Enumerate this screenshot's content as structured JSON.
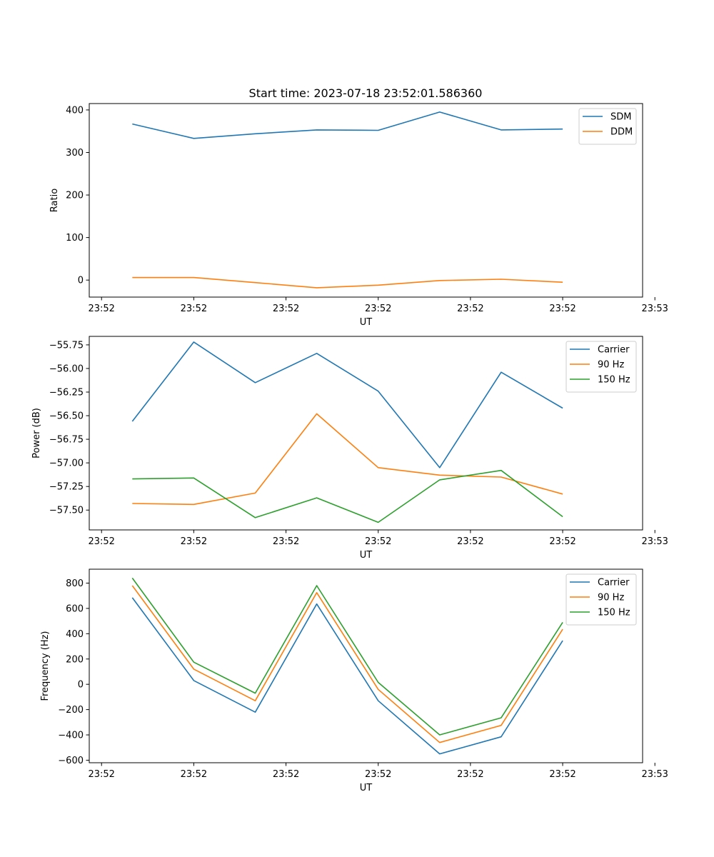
{
  "figure_title": "Start time: 2023-07-18 23:52:01.586360",
  "colors": {
    "c0": "#1f77b4",
    "c1": "#ff7f0e",
    "c2": "#2ca02c"
  },
  "chart_data": [
    {
      "type": "line",
      "title": "Start time: 2023-07-18 23:52:01.586360",
      "xlabel": "UT",
      "ylabel": "Ratio",
      "x": [
        1,
        2,
        3,
        4,
        5,
        6,
        7,
        8
      ],
      "xlim": [
        0.3,
        9.3
      ],
      "xticks": [
        0.5,
        2,
        3.5,
        5,
        6.5,
        8,
        9.5
      ],
      "xtick_labels": [
        "23:52",
        "23:52",
        "23:52",
        "23:52",
        "23:52",
        "23:52",
        "23:53"
      ],
      "ylim": [
        -40,
        415
      ],
      "yticks": [
        0,
        100,
        200,
        300,
        400
      ],
      "ytick_labels": [
        "0",
        "100",
        "200",
        "300",
        "400"
      ],
      "legend_position": "top-right",
      "series": [
        {
          "name": "SDM",
          "color": "#1f77b4",
          "values": [
            367,
            333,
            344,
            353,
            352,
            395,
            353,
            355
          ]
        },
        {
          "name": "DDM",
          "color": "#ff7f0e",
          "values": [
            6,
            6,
            -6,
            -18,
            -12,
            -1,
            2,
            -5
          ]
        }
      ]
    },
    {
      "type": "line",
      "title": "",
      "xlabel": "UT",
      "ylabel": "Power (dB)",
      "x": [
        1,
        2,
        3,
        4,
        5,
        6,
        7,
        8
      ],
      "xlim": [
        0.3,
        9.3
      ],
      "xticks": [
        0.5,
        2,
        3.5,
        5,
        6.5,
        8,
        9.5
      ],
      "xtick_labels": [
        "23:52",
        "23:52",
        "23:52",
        "23:52",
        "23:52",
        "23:52",
        "23:53"
      ],
      "ylim": [
        -57.71,
        -55.66
      ],
      "yticks": [
        -57.5,
        -57.25,
        -57.0,
        -56.75,
        -56.5,
        -56.25,
        -56.0,
        -55.75
      ],
      "ytick_labels": [
        "−57.50",
        "−57.25",
        "−57.00",
        "−56.75",
        "−56.50",
        "−56.25",
        "−56.00",
        "−55.75"
      ],
      "legend_position": "top-right",
      "series": [
        {
          "name": "Carrier",
          "color": "#1f77b4",
          "values": [
            -56.56,
            -55.72,
            -56.15,
            -55.84,
            -56.24,
            -57.05,
            -56.04,
            -56.42
          ]
        },
        {
          "name": "90 Hz",
          "color": "#ff7f0e",
          "values": [
            -57.43,
            -57.44,
            -57.32,
            -56.48,
            -57.05,
            -57.13,
            -57.15,
            -57.33
          ]
        },
        {
          "name": "150 Hz",
          "color": "#2ca02c",
          "values": [
            -57.17,
            -57.16,
            -57.58,
            -57.37,
            -57.63,
            -57.18,
            -57.08,
            -57.57
          ]
        }
      ]
    },
    {
      "type": "line",
      "title": "",
      "xlabel": "UT",
      "ylabel": "Frequency (Hz)",
      "x": [
        1,
        2,
        3,
        4,
        5,
        6,
        7,
        8
      ],
      "xlim": [
        0.3,
        9.3
      ],
      "xticks": [
        0.5,
        2,
        3.5,
        5,
        6.5,
        8,
        9.5
      ],
      "xtick_labels": [
        "23:52",
        "23:52",
        "23:52",
        "23:52",
        "23:52",
        "23:52",
        "23:53"
      ],
      "ylim": [
        -620,
        910
      ],
      "yticks": [
        -600,
        -400,
        -200,
        0,
        200,
        400,
        600,
        800
      ],
      "ytick_labels": [
        "−600",
        "−400",
        "−200",
        "0",
        "200",
        "400",
        "600",
        "800"
      ],
      "legend_position": "top-right",
      "series": [
        {
          "name": "Carrier",
          "color": "#1f77b4",
          "values": [
            685,
            30,
            -220,
            635,
            -130,
            -550,
            -415,
            345
          ]
        },
        {
          "name": "90 Hz",
          "color": "#ff7f0e",
          "values": [
            780,
            120,
            -130,
            725,
            -40,
            -460,
            -325,
            435
          ]
        },
        {
          "name": "150 Hz",
          "color": "#2ca02c",
          "values": [
            840,
            175,
            -70,
            780,
            15,
            -400,
            -265,
            490
          ]
        }
      ]
    }
  ]
}
